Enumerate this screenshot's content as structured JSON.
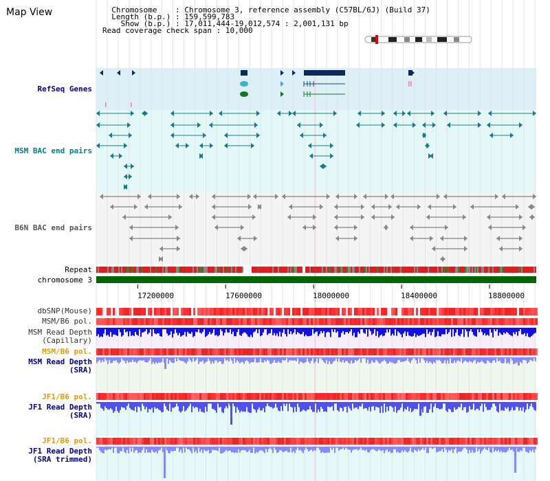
{
  "map_title": "Map View",
  "info": {
    "chromosome_label": "Chromosome",
    "chromosome_value": "Chromosome 3, reference assembly (C57BL/6J) (Build 37)",
    "length_label": "Length (b.p.)",
    "length_value": "159,599,783",
    "show_label": "Show (b.p.)",
    "show_value": "17,011,444-19,012,574 : 2,001,131 bp",
    "coverage_label": "Read coverage check span",
    "coverage_value": "10,000"
  },
  "tracks": {
    "refseq": "RefSeq Genes",
    "msm_bac": "MSM BAC end pairs",
    "b6n_bac": "B6N BAC end pairs",
    "repeat": "Repeat",
    "chromosome": "chromosome 3",
    "dbsnp": "dbSNP(Mouse)",
    "msm_b6_pol": "MSM/B6 pol.",
    "msm_depth_cap_1": "MSM Read Depth",
    "msm_depth_cap_2": "(Capillary)",
    "msm_b6_pol2": "MSM/B6 pol.",
    "msm_depth_sra_1": "MSM Read Depth",
    "msm_depth_sra_2": "(SRA)",
    "jf1_pol": "JF1/B6 pol.",
    "jf1_depth_sra_1": "JF1 Read Depth",
    "jf1_depth_sra_2": "(SRA)",
    "jf1_pol2": "JF1/B6 pol.",
    "jf1_depth_trim_1": "JF1 Read Depth",
    "jf1_depth_trim_2": "(SRA trimmed)"
  },
  "axis": {
    "ticks": [
      "17200000",
      "17600000",
      "18000000",
      "18400000",
      "18800000"
    ],
    "start": 17011444,
    "end": 19012574
  },
  "colors": {
    "refseq_bg": "#ddf0f8",
    "msm_bg": "#e4f8f8",
    "b6n_bg": "#f4f4f4",
    "chromosome": "#006400",
    "depth_blue": "#1010e8",
    "depth_light": "#8888ff",
    "pol_red": "#e83030"
  }
}
